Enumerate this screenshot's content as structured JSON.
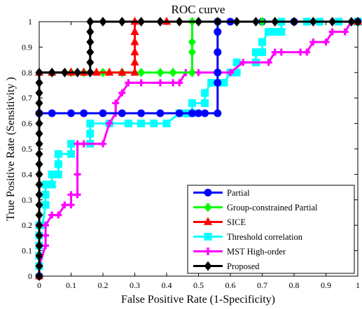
{
  "chart_data": {
    "type": "line",
    "title": "ROC curve",
    "xlabel": "False Positive Rate (1-Specificity)",
    "ylabel": "True Positive Rate (Sensitivity )",
    "xlim": [
      0,
      1
    ],
    "ylim": [
      0,
      1
    ],
    "xticks": [
      "0",
      "0.1",
      "0.2",
      "0.3",
      "0.4",
      "0.5",
      "0.6",
      "0.7",
      "0.8",
      "0.9",
      "1"
    ],
    "yticks": [
      "0",
      "0.1",
      "0.2",
      "0.3",
      "0.4",
      "0.5",
      "0.6",
      "0.7",
      "0.8",
      "0.9",
      "1"
    ],
    "grid": false,
    "legend_position": "bottom-right",
    "series": [
      {
        "name": "Threshold correlation",
        "color": "#00ffff",
        "marker": "square",
        "points": [
          [
            0,
            0.04
          ],
          [
            0,
            0.08
          ],
          [
            0,
            0.12
          ],
          [
            0,
            0.16
          ],
          [
            0,
            0.2
          ],
          [
            0.01,
            0.2
          ],
          [
            0.02,
            0.28
          ],
          [
            0.02,
            0.32
          ],
          [
            0.02,
            0.36
          ],
          [
            0.04,
            0.36
          ],
          [
            0.04,
            0.4
          ],
          [
            0.06,
            0.4
          ],
          [
            0.06,
            0.44
          ],
          [
            0.06,
            0.48
          ],
          [
            0.1,
            0.48
          ],
          [
            0.1,
            0.52
          ],
          [
            0.16,
            0.52
          ],
          [
            0.16,
            0.56
          ],
          [
            0.16,
            0.6
          ],
          [
            0.22,
            0.6
          ],
          [
            0.28,
            0.6
          ],
          [
            0.32,
            0.6
          ],
          [
            0.36,
            0.6
          ],
          [
            0.4,
            0.6
          ],
          [
            0.44,
            0.64
          ],
          [
            0.46,
            0.64
          ],
          [
            0.48,
            0.64
          ],
          [
            0.48,
            0.68
          ],
          [
            0.52,
            0.68
          ],
          [
            0.52,
            0.72
          ],
          [
            0.54,
            0.76
          ],
          [
            0.58,
            0.76
          ],
          [
            0.6,
            0.8
          ],
          [
            0.62,
            0.8
          ],
          [
            0.62,
            0.84
          ],
          [
            0.68,
            0.84
          ],
          [
            0.68,
            0.88
          ],
          [
            0.7,
            0.88
          ],
          [
            0.7,
            0.92
          ],
          [
            0.72,
            0.96
          ],
          [
            0.74,
            0.96
          ],
          [
            0.76,
            0.96
          ],
          [
            0.76,
            1
          ],
          [
            0.84,
            1
          ],
          [
            0.88,
            1
          ],
          [
            0.94,
            1
          ],
          [
            1,
            1
          ]
        ]
      },
      {
        "name": "MST High-order",
        "color": "#ff00ff",
        "marker": "plus",
        "points": [
          [
            0,
            0.04
          ],
          [
            0.02,
            0.12
          ],
          [
            0.02,
            0.16
          ],
          [
            0.02,
            0.2
          ],
          [
            0.04,
            0.24
          ],
          [
            0.06,
            0.24
          ],
          [
            0.08,
            0.28
          ],
          [
            0.1,
            0.28
          ],
          [
            0.1,
            0.32
          ],
          [
            0.12,
            0.32
          ],
          [
            0.12,
            0.4
          ],
          [
            0.12,
            0.52
          ],
          [
            0.14,
            0.52
          ],
          [
            0.2,
            0.52
          ],
          [
            0.22,
            0.6
          ],
          [
            0.24,
            0.64
          ],
          [
            0.24,
            0.68
          ],
          [
            0.26,
            0.72
          ],
          [
            0.28,
            0.76
          ],
          [
            0.32,
            0.76
          ],
          [
            0.38,
            0.76
          ],
          [
            0.42,
            0.76
          ],
          [
            0.44,
            0.76
          ],
          [
            0.46,
            0.8
          ],
          [
            0.48,
            0.8
          ],
          [
            0.5,
            0.8
          ],
          [
            0.56,
            0.8
          ],
          [
            0.6,
            0.8
          ],
          [
            0.64,
            0.84
          ],
          [
            0.72,
            0.84
          ],
          [
            0.74,
            0.88
          ],
          [
            0.76,
            0.88
          ],
          [
            0.82,
            0.88
          ],
          [
            0.84,
            0.88
          ],
          [
            0.86,
            0.92
          ],
          [
            0.9,
            0.92
          ],
          [
            0.92,
            0.96
          ],
          [
            0.96,
            0.96
          ],
          [
            0.98,
            1
          ],
          [
            1,
            1
          ]
        ]
      },
      {
        "name": "Partial",
        "color": "#0000ff",
        "marker": "circle",
        "points": [
          [
            0,
            0
          ],
          [
            0,
            0.64
          ],
          [
            0.04,
            0.64
          ],
          [
            0.1,
            0.64
          ],
          [
            0.14,
            0.64
          ],
          [
            0.2,
            0.64
          ],
          [
            0.26,
            0.64
          ],
          [
            0.32,
            0.64
          ],
          [
            0.38,
            0.64
          ],
          [
            0.44,
            0.64
          ],
          [
            0.48,
            0.64
          ],
          [
            0.5,
            0.64
          ],
          [
            0.52,
            0.64
          ],
          [
            0.56,
            0.64
          ],
          [
            0.56,
            0.76
          ],
          [
            0.56,
            0.8
          ],
          [
            0.56,
            0.88
          ],
          [
            0.56,
            0.96
          ],
          [
            0.56,
            1
          ],
          [
            0.6,
            1
          ],
          [
            0.7,
            1
          ],
          [
            0.8,
            1
          ],
          [
            1,
            1
          ]
        ]
      },
      {
        "name": "Group-constrained Partial",
        "color": "#00ff00",
        "marker": "diamond",
        "points": [
          [
            0,
            0
          ],
          [
            0,
            0.8
          ],
          [
            0.04,
            0.8
          ],
          [
            0.1,
            0.8
          ],
          [
            0.14,
            0.8
          ],
          [
            0.2,
            0.8
          ],
          [
            0.26,
            0.8
          ],
          [
            0.32,
            0.8
          ],
          [
            0.38,
            0.8
          ],
          [
            0.42,
            0.8
          ],
          [
            0.48,
            0.8
          ],
          [
            0.48,
            0.88
          ],
          [
            0.48,
            0.92
          ],
          [
            0.48,
            1
          ],
          [
            0.56,
            1
          ],
          [
            0.7,
            1
          ],
          [
            1,
            1
          ]
        ]
      },
      {
        "name": "SICE",
        "color": "#ff0000",
        "marker": "triangle",
        "points": [
          [
            0,
            0
          ],
          [
            0,
            0.8
          ],
          [
            0.04,
            0.8
          ],
          [
            0.1,
            0.8
          ],
          [
            0.14,
            0.8
          ],
          [
            0.18,
            0.8
          ],
          [
            0.22,
            0.8
          ],
          [
            0.26,
            0.8
          ],
          [
            0.3,
            0.8
          ],
          [
            0.3,
            0.84
          ],
          [
            0.3,
            0.88
          ],
          [
            0.3,
            0.92
          ],
          [
            0.3,
            0.96
          ],
          [
            0.3,
            1
          ],
          [
            0.4,
            1
          ],
          [
            1,
            1
          ]
        ]
      },
      {
        "name": "Proposed",
        "color": "#000000",
        "marker": "diamond",
        "points": [
          [
            0,
            0
          ],
          [
            0,
            0.04
          ],
          [
            0,
            0.08
          ],
          [
            0,
            0.12
          ],
          [
            0,
            0.16
          ],
          [
            0,
            0.2
          ],
          [
            0,
            0.24
          ],
          [
            0,
            0.28
          ],
          [
            0,
            0.32
          ],
          [
            0,
            0.36
          ],
          [
            0,
            0.4
          ],
          [
            0,
            0.44
          ],
          [
            0,
            0.48
          ],
          [
            0,
            0.52
          ],
          [
            0,
            0.56
          ],
          [
            0,
            0.6
          ],
          [
            0,
            0.64
          ],
          [
            0,
            0.68
          ],
          [
            0,
            0.72
          ],
          [
            0,
            0.76
          ],
          [
            0,
            0.8
          ],
          [
            0.04,
            0.8
          ],
          [
            0.08,
            0.8
          ],
          [
            0.12,
            0.8
          ],
          [
            0.16,
            0.8
          ],
          [
            0.16,
            0.84
          ],
          [
            0.16,
            0.88
          ],
          [
            0.16,
            0.92
          ],
          [
            0.16,
            0.96
          ],
          [
            0.16,
            1
          ],
          [
            0.2,
            1
          ],
          [
            0.26,
            1
          ],
          [
            0.32,
            1
          ],
          [
            0.38,
            1
          ],
          [
            0.44,
            1
          ],
          [
            0.5,
            1
          ],
          [
            0.56,
            1
          ],
          [
            0.62,
            1
          ],
          [
            0.68,
            1
          ],
          [
            0.74,
            1
          ],
          [
            0.8,
            1
          ],
          [
            0.86,
            1
          ],
          [
            0.92,
            1
          ],
          [
            0.98,
            1
          ],
          [
            1,
            1
          ]
        ]
      }
    ],
    "legend_order": [
      "Partial",
      "Group-constrained Partial",
      "SICE",
      "Threshold correlation",
      "MST High-order",
      "Proposed"
    ]
  }
}
